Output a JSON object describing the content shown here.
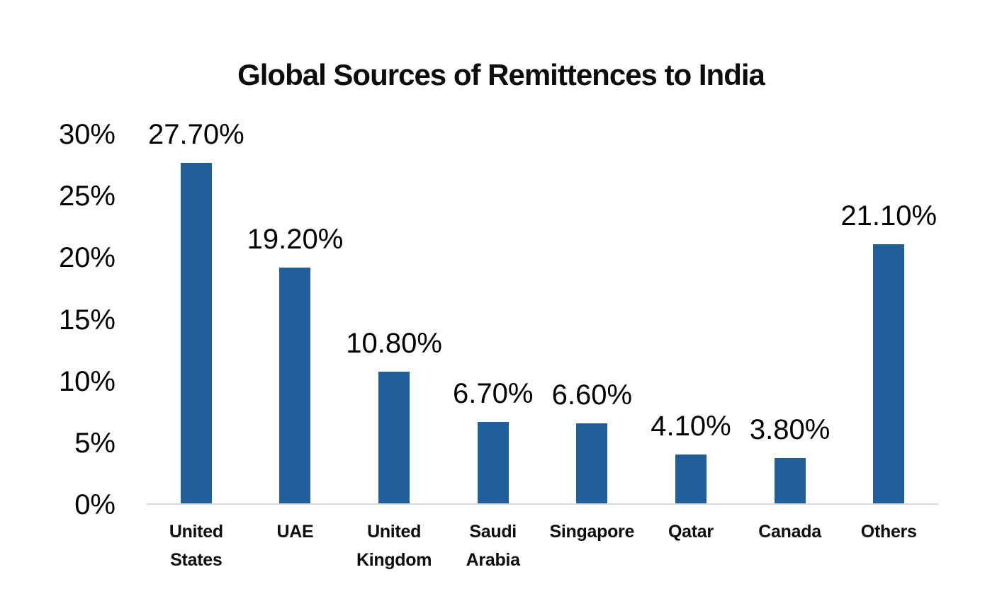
{
  "chart_data": {
    "type": "bar",
    "title": "Global Sources of Remittences to India",
    "categories": [
      "United States",
      "UAE",
      "United Kingdom",
      "Saudi Arabia",
      "Singapore",
      "Qatar",
      "Canada",
      "Others"
    ],
    "values": [
      27.7,
      19.2,
      10.8,
      6.7,
      6.6,
      4.1,
      3.8,
      21.1
    ],
    "data_labels": [
      "27.70%",
      "19.20%",
      "10.80%",
      "6.70%",
      "6.60%",
      "4.10%",
      "3.80%",
      "21.10%"
    ],
    "y_ticks": [
      "0%",
      "5%",
      "10%",
      "15%",
      "20%",
      "25%",
      "30%"
    ],
    "y_tick_values": [
      0,
      5,
      10,
      15,
      20,
      25,
      30
    ],
    "ylim": [
      0,
      30
    ],
    "xlabel": "",
    "ylabel": "",
    "grid": false,
    "legend": false,
    "bar_color": "#215F9C",
    "axis_line_color": "#D9D9D9",
    "text_color": "#000000"
  }
}
